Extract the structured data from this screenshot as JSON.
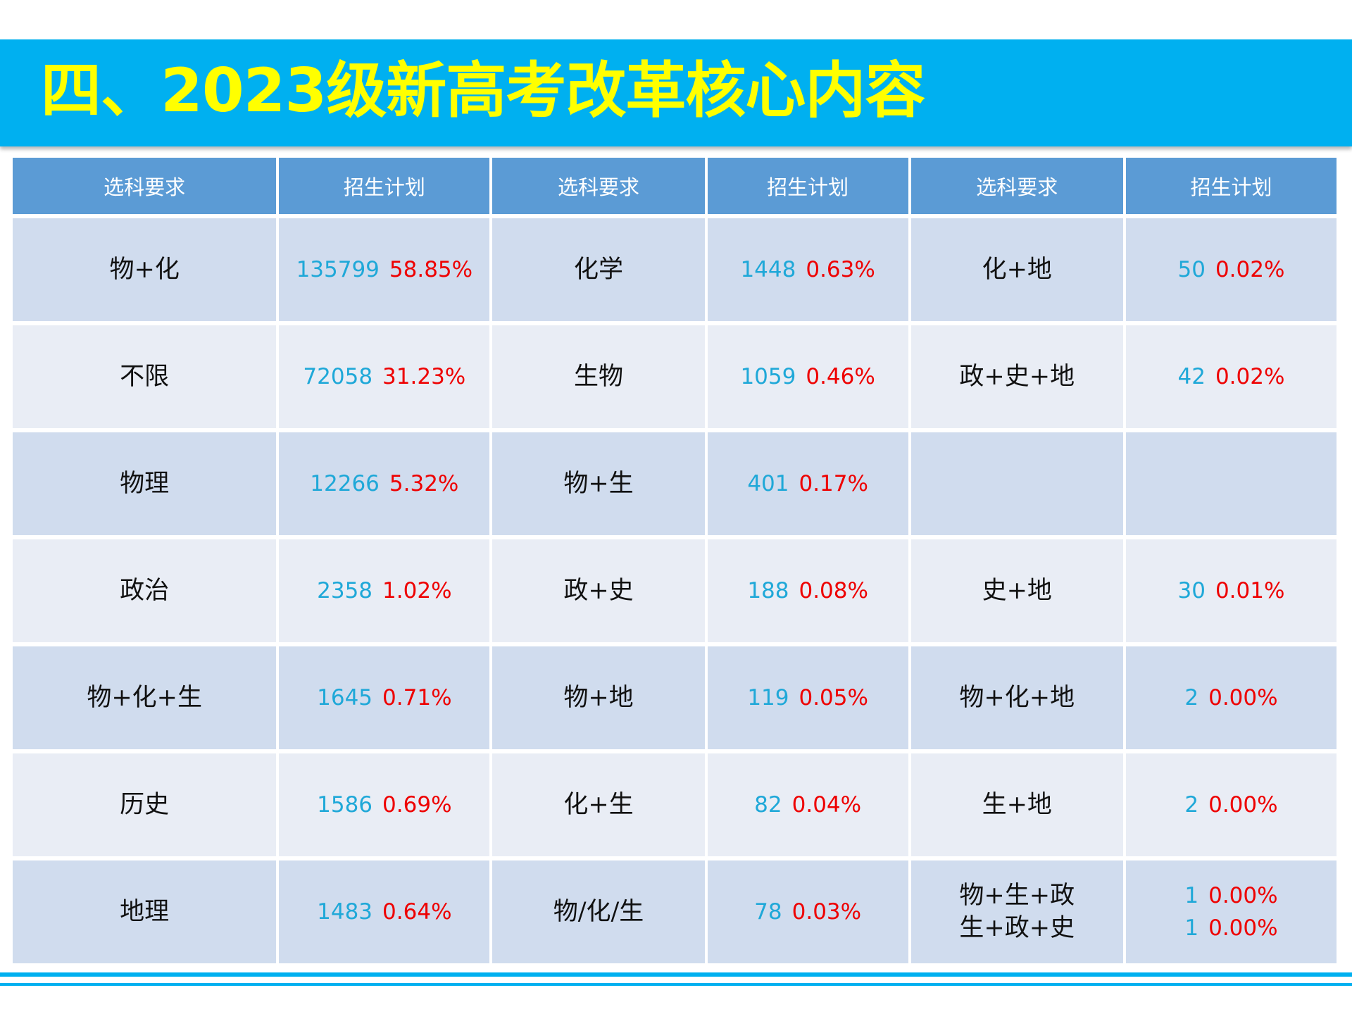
{
  "title": "四、2023级新高考改革核心内容",
  "table": {
    "headers": [
      "选科要求",
      "招生计划",
      "选科要求",
      "招生计划",
      "选科要求",
      "招生计划"
    ],
    "rows": [
      [
        {
          "subject": [
            "物+化"
          ]
        },
        {
          "plan": [
            {
              "count": "135799",
              "percent": "58.85%"
            }
          ]
        },
        {
          "subject": [
            "化学"
          ]
        },
        {
          "plan": [
            {
              "count": "1448",
              "percent": "0.63%"
            }
          ]
        },
        {
          "subject": [
            "化+地"
          ]
        },
        {
          "plan": [
            {
              "count": "50",
              "percent": "0.02%"
            }
          ]
        }
      ],
      [
        {
          "subject": [
            "不限"
          ]
        },
        {
          "plan": [
            {
              "count": "72058",
              "percent": "31.23%"
            }
          ]
        },
        {
          "subject": [
            "生物"
          ]
        },
        {
          "plan": [
            {
              "count": "1059",
              "percent": "0.46%"
            }
          ]
        },
        {
          "subject": [
            "政+史+地"
          ]
        },
        {
          "plan": [
            {
              "count": "42",
              "percent": "0.02%"
            }
          ]
        }
      ],
      [
        {
          "subject": [
            "物理"
          ]
        },
        {
          "plan": [
            {
              "count": "12266",
              "percent": "5.32%"
            }
          ]
        },
        {
          "subject": [
            "物+生"
          ]
        },
        {
          "plan": [
            {
              "count": "401",
              "percent": "0.17%"
            }
          ]
        },
        {
          "subject": []
        },
        {
          "plan": []
        }
      ],
      [
        {
          "subject": [
            "政治"
          ]
        },
        {
          "plan": [
            {
              "count": "2358",
              "percent": "1.02%"
            }
          ]
        },
        {
          "subject": [
            "政+史"
          ]
        },
        {
          "plan": [
            {
              "count": "188",
              "percent": "0.08%"
            }
          ]
        },
        {
          "subject": [
            "史+地"
          ]
        },
        {
          "plan": [
            {
              "count": "30",
              "percent": "0.01%"
            }
          ]
        }
      ],
      [
        {
          "subject": [
            "物+化+生"
          ]
        },
        {
          "plan": [
            {
              "count": "1645",
              "percent": "0.71%"
            }
          ]
        },
        {
          "subject": [
            "物+地"
          ]
        },
        {
          "plan": [
            {
              "count": "119",
              "percent": "0.05%"
            }
          ]
        },
        {
          "subject": [
            "物+化+地"
          ]
        },
        {
          "plan": [
            {
              "count": "2",
              "percent": "0.00%"
            }
          ]
        }
      ],
      [
        {
          "subject": [
            "历史"
          ]
        },
        {
          "plan": [
            {
              "count": "1586",
              "percent": "0.69%"
            }
          ]
        },
        {
          "subject": [
            "化+生"
          ]
        },
        {
          "plan": [
            {
              "count": "82",
              "percent": "0.04%"
            }
          ]
        },
        {
          "subject": [
            "生+地"
          ]
        },
        {
          "plan": [
            {
              "count": "2",
              "percent": "0.00%"
            }
          ]
        }
      ],
      [
        {
          "subject": [
            "地理"
          ]
        },
        {
          "plan": [
            {
              "count": "1483",
              "percent": "0.64%"
            }
          ]
        },
        {
          "subject": [
            "物/化/生"
          ]
        },
        {
          "plan": [
            {
              "count": "78",
              "percent": "0.03%"
            }
          ]
        },
        {
          "subject": [
            "物+生+政",
            "生+政+史"
          ]
        },
        {
          "plan": [
            {
              "count": "1",
              "percent": "0.00%"
            },
            {
              "count": "1",
              "percent": "0.00%"
            }
          ]
        }
      ]
    ]
  },
  "colors": {
    "title_bar": "#00b0f0",
    "title_text": "#ffff00",
    "header_bg": "#5b9bd5",
    "row_dark": "#d0dcee",
    "row_light": "#e9edf5",
    "count_text": "#1fa8d8",
    "percent_text": "#ee0000"
  }
}
